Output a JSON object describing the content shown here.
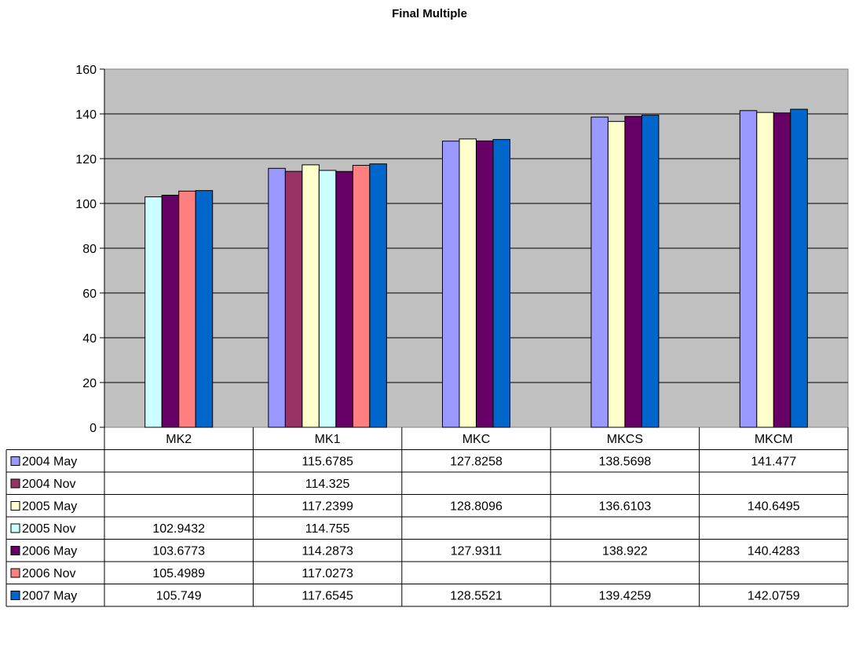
{
  "chart_data": {
    "type": "bar",
    "title": "Final Multiple",
    "categories": [
      "MK2",
      "MK1",
      "MKC",
      "MKCS",
      "MKCM"
    ],
    "ylim": [
      0,
      160
    ],
    "yticks": [
      0,
      20,
      40,
      60,
      80,
      100,
      120,
      140,
      160
    ],
    "grid": true,
    "legend": "data-table-left",
    "plot_background": "#c0c0c0",
    "series": [
      {
        "name": "2004 May",
        "color": "#9999ff",
        "values": [
          null,
          115.6785,
          127.8258,
          138.5698,
          141.477
        ],
        "labels": [
          "",
          "115.6785",
          "127.8258",
          "138.5698",
          "141.477"
        ]
      },
      {
        "name": "2004 Nov",
        "color": "#993366",
        "values": [
          null,
          114.325,
          null,
          null,
          null
        ],
        "labels": [
          "",
          "114.325",
          "",
          "",
          ""
        ]
      },
      {
        "name": "2005 May",
        "color": "#ffffcc",
        "values": [
          null,
          117.2399,
          128.8096,
          136.6103,
          140.6495
        ],
        "labels": [
          "",
          "117.2399",
          "128.8096",
          "136.6103",
          "140.6495"
        ]
      },
      {
        "name": "2005 Nov",
        "color": "#ccffff",
        "values": [
          102.9432,
          114.755,
          null,
          null,
          null
        ],
        "labels": [
          "102.9432",
          "114.755",
          "",
          "",
          ""
        ]
      },
      {
        "name": "2006 May",
        "color": "#660066",
        "values": [
          103.6773,
          114.2873,
          127.9311,
          138.922,
          140.4283
        ],
        "labels": [
          "103.6773",
          "114.2873",
          "127.9311",
          "138.922",
          "140.4283"
        ]
      },
      {
        "name": "2006 Nov",
        "color": "#ff8080",
        "values": [
          105.4989,
          117.0273,
          null,
          null,
          null
        ],
        "labels": [
          "105.4989",
          "117.0273",
          "",
          "",
          ""
        ]
      },
      {
        "name": "2007 May",
        "color": "#0066cc",
        "values": [
          105.749,
          117.6545,
          128.5521,
          139.4259,
          142.0759
        ],
        "labels": [
          "105.749",
          "117.6545",
          "128.5521",
          "139.4259",
          "142.0759"
        ]
      }
    ]
  }
}
